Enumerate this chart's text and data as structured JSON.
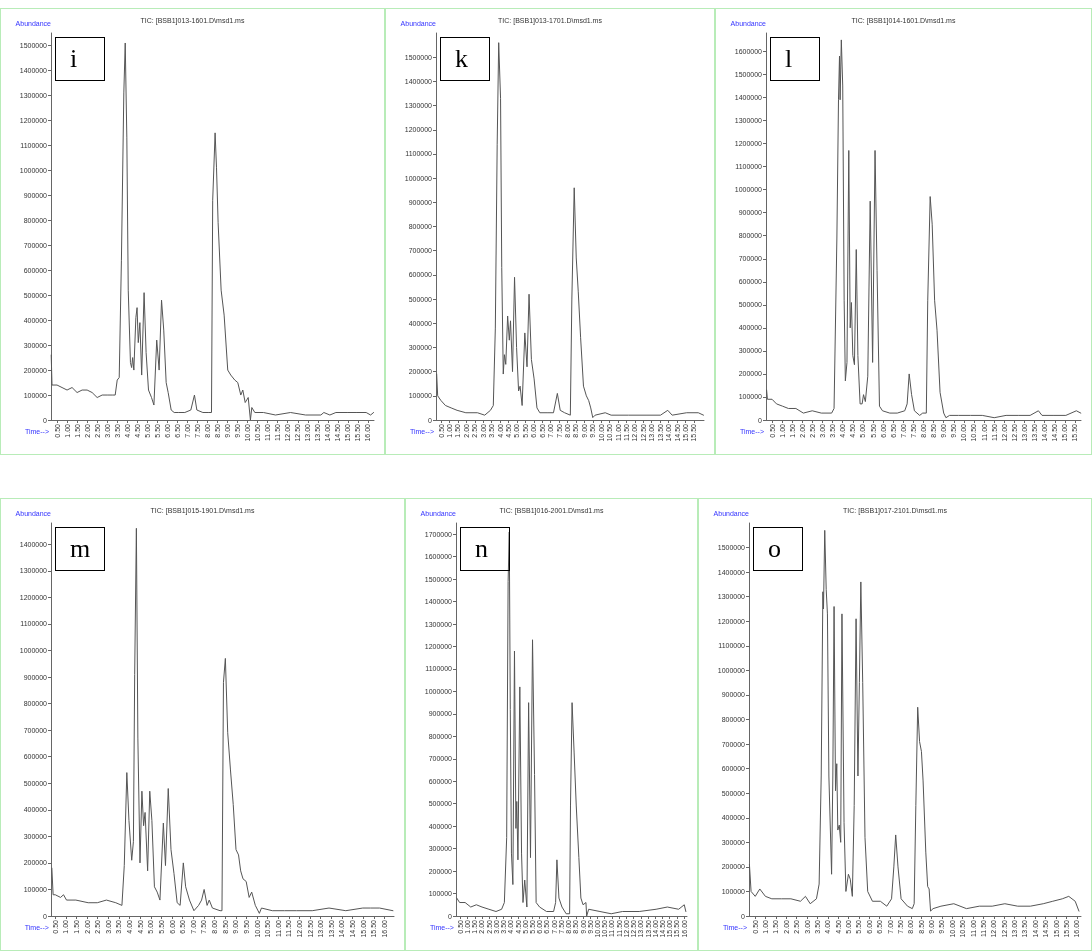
{
  "chart_data": [
    {
      "type": "line",
      "title": "TIC: [BSB1]013-1601.D\\msd1.ms",
      "xlabel": "Time-->",
      "ylabel": "Abundance",
      "annotations": [
        "i"
      ],
      "color": "#555555",
      "marker": "none",
      "grid": false,
      "xlim": [
        0.2,
        16.3
      ],
      "ylim": [
        0,
        1550000
      ],
      "xticks": [
        {
          "value": 0.5,
          "label": "0.50"
        },
        {
          "value": 1,
          "label": "1.00"
        },
        {
          "value": 1.5,
          "label": "1.50"
        },
        {
          "value": 2,
          "label": "2.00"
        },
        {
          "value": 2.5,
          "label": "2.50"
        },
        {
          "value": 3,
          "label": "3.00"
        },
        {
          "value": 3.5,
          "label": "3.50"
        },
        {
          "value": 4,
          "label": "4.00"
        },
        {
          "value": 4.5,
          "label": "4.50"
        },
        {
          "value": 5,
          "label": "5.00"
        },
        {
          "value": 5.5,
          "label": "5.50"
        },
        {
          "value": 6,
          "label": "6.00"
        },
        {
          "value": 6.5,
          "label": "6.50"
        },
        {
          "value": 7,
          "label": "7.00"
        },
        {
          "value": 7.5,
          "label": "7.50"
        },
        {
          "value": 8,
          "label": "8.00"
        },
        {
          "value": 8.5,
          "label": "8.50"
        },
        {
          "value": 9,
          "label": "9.00"
        },
        {
          "value": 9.5,
          "label": "9.50"
        },
        {
          "value": 10,
          "label": "10.00"
        },
        {
          "value": 10.5,
          "label": "10.50"
        },
        {
          "value": 11,
          "label": "11.00"
        },
        {
          "value": 11.5,
          "label": "11.50"
        },
        {
          "value": 12,
          "label": "12.00"
        },
        {
          "value": 12.5,
          "label": "12.50"
        },
        {
          "value": 13,
          "label": "13.00"
        },
        {
          "value": 13.5,
          "label": "13.50"
        },
        {
          "value": 14,
          "label": "14.00"
        },
        {
          "value": 14.5,
          "label": "14.50"
        },
        {
          "value": 15,
          "label": "15.00"
        },
        {
          "value": 15.5,
          "label": "15.50"
        },
        {
          "value": 16,
          "label": "16.00"
        }
      ],
      "yticks": [
        0,
        100000,
        200000,
        300000,
        400000,
        500000,
        600000,
        700000,
        800000,
        900000,
        1000000,
        1100000,
        1200000,
        1300000,
        1400000,
        1500000
      ],
      "x": [
        0.21,
        0.25,
        0.5,
        0.75,
        1.0,
        1.25,
        1.5,
        1.75,
        2.0,
        2.25,
        2.5,
        2.75,
        3.0,
        3.25,
        3.4,
        3.5,
        3.6,
        3.71,
        3.83,
        3.9,
        3.98,
        4.05,
        4.16,
        4.22,
        4.27,
        4.33,
        4.43,
        4.49,
        4.55,
        4.63,
        4.72,
        4.84,
        4.94,
        5.06,
        5.21,
        5.33,
        5.47,
        5.59,
        5.71,
        5.82,
        5.94,
        6.04,
        6.19,
        6.34,
        6.57,
        6.87,
        7.17,
        7.35,
        7.47,
        7.77,
        8.07,
        8.2,
        8.26,
        8.38,
        8.45,
        8.53,
        8.68,
        8.83,
        9.01,
        9.16,
        9.36,
        9.51,
        9.66,
        9.76,
        9.88,
        10.03,
        10.14,
        10.21,
        10.36,
        10.79,
        11.39,
        12.14,
        12.89,
        13.65,
        13.8,
        14.1,
        14.4,
        15.0,
        15.45,
        15.91,
        16.13,
        16.28
      ],
      "values": [
        260000,
        140000,
        140000,
        130000,
        120000,
        130000,
        110000,
        120000,
        120000,
        110000,
        90000,
        100000,
        100000,
        100000,
        100000,
        160000,
        170000,
        640000,
        1310000,
        1510000,
        1130000,
        520000,
        230000,
        210000,
        250000,
        200000,
        410000,
        450000,
        310000,
        390000,
        180000,
        510000,
        270000,
        120000,
        90000,
        60000,
        320000,
        200000,
        480000,
        360000,
        150000,
        110000,
        40000,
        30000,
        30000,
        30000,
        40000,
        100000,
        40000,
        30000,
        30000,
        30000,
        880000,
        1150000,
        1010000,
        790000,
        520000,
        420000,
        200000,
        180000,
        160000,
        150000,
        100000,
        120000,
        70000,
        90000,
        0,
        50000,
        30000,
        30000,
        20000,
        30000,
        20000,
        20000,
        30000,
        20000,
        30000,
        30000,
        30000,
        30000,
        20000,
        30000
      ]
    },
    {
      "type": "line",
      "title": "TIC: [BSB1]013-1701.D\\msd1.ms",
      "xlabel": "Time-->",
      "ylabel": "Abundance",
      "annotations": [
        "k"
      ],
      "color": "#555555",
      "marker": "none",
      "grid": false,
      "xlim": [
        0.2,
        16.1
      ],
      "ylim": [
        0,
        1600000
      ],
      "xticks": [
        {
          "value": 0.5,
          "label": "0.50"
        },
        {
          "value": 1,
          "label": "1.00"
        },
        {
          "value": 1.5,
          "label": "1.50"
        },
        {
          "value": 2,
          "label": "2.00"
        },
        {
          "value": 2.5,
          "label": "2.50"
        },
        {
          "value": 3,
          "label": "3.00"
        },
        {
          "value": 3.5,
          "label": "3.50"
        },
        {
          "value": 4,
          "label": "4.00"
        },
        {
          "value": 4.5,
          "label": "4.50"
        },
        {
          "value": 5,
          "label": "5.00"
        },
        {
          "value": 5.5,
          "label": "5.50"
        },
        {
          "value": 6,
          "label": "6.00"
        },
        {
          "value": 6.5,
          "label": "6.50"
        },
        {
          "value": 7,
          "label": "7.00"
        },
        {
          "value": 7.5,
          "label": "7.50"
        },
        {
          "value": 8,
          "label": "8.00"
        },
        {
          "value": 8.5,
          "label": "8.50"
        },
        {
          "value": 9,
          "label": "9.00"
        },
        {
          "value": 9.5,
          "label": "9.50"
        },
        {
          "value": 10,
          "label": "10.00"
        },
        {
          "value": 10.5,
          "label": "10.50"
        },
        {
          "value": 11,
          "label": "11.00"
        },
        {
          "value": 11.5,
          "label": "11.50"
        },
        {
          "value": 12,
          "label": "12.00"
        },
        {
          "value": 12.5,
          "label": "12.50"
        },
        {
          "value": 13,
          "label": "13.00"
        },
        {
          "value": 13.5,
          "label": "13.50"
        },
        {
          "value": 14,
          "label": "14.00"
        },
        {
          "value": 14.5,
          "label": "14.50"
        },
        {
          "value": 15,
          "label": "15.00"
        },
        {
          "value": 15.5,
          "label": "15.50"
        }
      ],
      "yticks": [
        0,
        100000,
        200000,
        300000,
        400000,
        500000,
        600000,
        700000,
        800000,
        900000,
        1000000,
        1100000,
        1200000,
        1300000,
        1400000,
        1500000
      ],
      "x": [
        0.24,
        0.3,
        0.5,
        0.76,
        1.1,
        1.45,
        1.97,
        2.66,
        3.09,
        3.43,
        3.6,
        3.72,
        3.83,
        3.92,
        4.03,
        4.1,
        4.19,
        4.26,
        4.34,
        4.45,
        4.55,
        4.62,
        4.74,
        4.86,
        4.98,
        5.1,
        5.19,
        5.31,
        5.47,
        5.6,
        5.72,
        5.86,
        6.02,
        6.19,
        6.36,
        6.79,
        7.17,
        7.4,
        7.57,
        7.83,
        8.17,
        8.26,
        8.4,
        8.52,
        8.64,
        8.78,
        8.95,
        9.12,
        9.26,
        9.38,
        9.5,
        9.64,
        10.24,
        10.59,
        11.62,
        12.66,
        13.52,
        13.95,
        14.21,
        15.07,
        15.76,
        16.07
      ],
      "values": [
        190000,
        100000,
        80000,
        60000,
        50000,
        40000,
        30000,
        30000,
        20000,
        40000,
        60000,
        380000,
        1140000,
        1560000,
        1330000,
        630000,
        190000,
        270000,
        230000,
        430000,
        330000,
        410000,
        200000,
        590000,
        300000,
        120000,
        140000,
        60000,
        360000,
        220000,
        520000,
        250000,
        170000,
        50000,
        30000,
        30000,
        30000,
        110000,
        40000,
        30000,
        20000,
        500000,
        960000,
        670000,
        530000,
        340000,
        140000,
        100000,
        80000,
        50000,
        10000,
        20000,
        30000,
        20000,
        20000,
        20000,
        20000,
        40000,
        20000,
        30000,
        30000,
        20000
      ]
    },
    {
      "type": "line",
      "title": "TIC: [BSB1]014-1601.D\\msd1.ms",
      "xlabel": "Time-->",
      "ylabel": "Abundance",
      "annotations": [
        "l"
      ],
      "color": "#555555",
      "marker": "none",
      "grid": false,
      "xlim": [
        0.2,
        15.8
      ],
      "ylim": [
        0,
        1680000
      ],
      "xticks": [
        {
          "value": 0.5,
          "label": "0.50"
        },
        {
          "value": 1,
          "label": "1.00"
        },
        {
          "value": 1.5,
          "label": "1.50"
        },
        {
          "value": 2,
          "label": "2.00"
        },
        {
          "value": 2.5,
          "label": "2.50"
        },
        {
          "value": 3,
          "label": "3.00"
        },
        {
          "value": 3.5,
          "label": "3.50"
        },
        {
          "value": 4,
          "label": "4.00"
        },
        {
          "value": 4.5,
          "label": "4.50"
        },
        {
          "value": 5,
          "label": "5.00"
        },
        {
          "value": 5.5,
          "label": "5.50"
        },
        {
          "value": 6,
          "label": "6.00"
        },
        {
          "value": 6.5,
          "label": "6.50"
        },
        {
          "value": 7,
          "label": "7.00"
        },
        {
          "value": 7.5,
          "label": "7.50"
        },
        {
          "value": 8,
          "label": "8.00"
        },
        {
          "value": 8.5,
          "label": "8.50"
        },
        {
          "value": 9,
          "label": "9.00"
        },
        {
          "value": 9.5,
          "label": "9.50"
        },
        {
          "value": 10,
          "label": "10.00"
        },
        {
          "value": 10.5,
          "label": "10.50"
        },
        {
          "value": 11,
          "label": "11.00"
        },
        {
          "value": 11.5,
          "label": "11.50"
        },
        {
          "value": 12,
          "label": "12.00"
        },
        {
          "value": 12.5,
          "label": "12.50"
        },
        {
          "value": 13,
          "label": "13.00"
        },
        {
          "value": 13.5,
          "label": "13.50"
        },
        {
          "value": 14,
          "label": "14.00"
        },
        {
          "value": 14.5,
          "label": "14.50"
        },
        {
          "value": 15,
          "label": "15.00"
        },
        {
          "value": 15.5,
          "label": "15.50"
        }
      ],
      "yticks": [
        0,
        100000,
        200000,
        300000,
        400000,
        500000,
        600000,
        700000,
        800000,
        900000,
        1000000,
        1100000,
        1200000,
        1300000,
        1400000,
        1500000,
        1600000
      ],
      "x": [
        0.23,
        0.27,
        0.5,
        0.72,
        1.02,
        1.31,
        1.68,
        2.05,
        2.49,
        2.94,
        3.45,
        3.57,
        3.71,
        3.79,
        3.84,
        3.87,
        3.93,
        4.0,
        4.07,
        4.13,
        4.21,
        4.3,
        4.37,
        4.43,
        4.5,
        4.58,
        4.67,
        4.75,
        4.86,
        4.96,
        5.03,
        5.12,
        5.24,
        5.36,
        5.48,
        5.6,
        5.7,
        5.82,
        5.97,
        6.33,
        6.7,
        7.07,
        7.19,
        7.29,
        7.41,
        7.55,
        7.81,
        7.96,
        8.14,
        8.21,
        8.33,
        8.43,
        8.55,
        8.67,
        8.82,
        9.0,
        9.11,
        9.29,
        9.73,
        10.32,
        10.91,
        11.5,
        12.09,
        12.69,
        13.28,
        13.69,
        13.87,
        14.46,
        15.05,
        15.57,
        15.79
      ],
      "values": [
        130000,
        90000,
        90000,
        70000,
        60000,
        50000,
        50000,
        30000,
        40000,
        30000,
        30000,
        50000,
        790000,
        1390000,
        1580000,
        1390000,
        1650000,
        1450000,
        520000,
        170000,
        250000,
        1170000,
        400000,
        510000,
        280000,
        240000,
        740000,
        280000,
        70000,
        70000,
        110000,
        80000,
        190000,
        950000,
        250000,
        1170000,
        650000,
        60000,
        40000,
        30000,
        30000,
        40000,
        70000,
        200000,
        110000,
        40000,
        20000,
        30000,
        30000,
        520000,
        970000,
        850000,
        520000,
        390000,
        120000,
        30000,
        10000,
        20000,
        20000,
        20000,
        20000,
        10000,
        20000,
        20000,
        20000,
        40000,
        20000,
        20000,
        20000,
        40000,
        30000
      ]
    },
    {
      "type": "line",
      "title": "TIC: [BSB1]015-1901.D\\msd1.ms",
      "xlabel": "Time-->",
      "ylabel": "Abundance",
      "annotations": [
        "m"
      ],
      "color": "#555555",
      "marker": "none",
      "grid": false,
      "xlim": [
        0.3,
        16.45
      ],
      "ylim": [
        0,
        1480000
      ],
      "xticks": [
        {
          "value": 0.5,
          "label": "0.50"
        },
        {
          "value": 1,
          "label": "1.00"
        },
        {
          "value": 1.5,
          "label": "1.50"
        },
        {
          "value": 2,
          "label": "2.00"
        },
        {
          "value": 2.5,
          "label": "2.50"
        },
        {
          "value": 3,
          "label": "3.00"
        },
        {
          "value": 3.5,
          "label": "3.50"
        },
        {
          "value": 4,
          "label": "4.00"
        },
        {
          "value": 4.5,
          "label": "4.50"
        },
        {
          "value": 5,
          "label": "5.00"
        },
        {
          "value": 5.5,
          "label": "5.50"
        },
        {
          "value": 6,
          "label": "6.00"
        },
        {
          "value": 6.5,
          "label": "6.50"
        },
        {
          "value": 7,
          "label": "7.00"
        },
        {
          "value": 7.5,
          "label": "7.50"
        },
        {
          "value": 8,
          "label": "8.00"
        },
        {
          "value": 8.5,
          "label": "8.50"
        },
        {
          "value": 9,
          "label": "9.00"
        },
        {
          "value": 9.5,
          "label": "9.50"
        },
        {
          "value": 10,
          "label": "10.00"
        },
        {
          "value": 10.5,
          "label": "10.50"
        },
        {
          "value": 11,
          "label": "11.00"
        },
        {
          "value": 11.5,
          "label": "11.50"
        },
        {
          "value": 12,
          "label": "12.00"
        },
        {
          "value": 12.5,
          "label": "12.50"
        },
        {
          "value": 13,
          "label": "13.00"
        },
        {
          "value": 13.5,
          "label": "13.50"
        },
        {
          "value": 14,
          "label": "14.00"
        },
        {
          "value": 14.5,
          "label": "14.50"
        },
        {
          "value": 15,
          "label": "15.00"
        },
        {
          "value": 15.5,
          "label": "15.50"
        },
        {
          "value": 16,
          "label": "16.00"
        }
      ],
      "yticks": [
        0,
        100000,
        200000,
        300000,
        400000,
        500000,
        600000,
        700000,
        800000,
        900000,
        1000000,
        1100000,
        1200000,
        1300000,
        1400000
      ],
      "x": [
        0.34,
        0.4,
        0.5,
        0.75,
        0.89,
        1.03,
        1.47,
        2.05,
        2.48,
        2.91,
        3.35,
        3.64,
        3.75,
        3.87,
        3.97,
        4.1,
        4.18,
        4.24,
        4.32,
        4.39,
        4.49,
        4.58,
        4.66,
        4.73,
        4.85,
        4.95,
        5.05,
        5.17,
        5.3,
        5.43,
        5.59,
        5.69,
        5.82,
        5.95,
        6.09,
        6.24,
        6.38,
        6.53,
        6.64,
        6.82,
        7.03,
        7.25,
        7.39,
        7.51,
        7.65,
        7.75,
        7.9,
        8.26,
        8.35,
        8.42,
        8.51,
        8.62,
        8.75,
        8.88,
        9.01,
        9.13,
        9.23,
        9.34,
        9.49,
        9.63,
        9.75,
        9.92,
        10.11,
        10.21,
        10.72,
        11.29,
        11.87,
        12.6,
        13.39,
        14.18,
        14.98,
        15.34,
        15.77,
        16.4
      ],
      "values": [
        180000,
        80000,
        80000,
        70000,
        80000,
        60000,
        60000,
        50000,
        50000,
        60000,
        50000,
        40000,
        190000,
        540000,
        360000,
        210000,
        280000,
        910000,
        1460000,
        670000,
        200000,
        470000,
        340000,
        390000,
        170000,
        470000,
        360000,
        110000,
        90000,
        60000,
        350000,
        190000,
        480000,
        250000,
        160000,
        50000,
        40000,
        200000,
        110000,
        60000,
        20000,
        40000,
        60000,
        100000,
        40000,
        60000,
        30000,
        20000,
        20000,
        880000,
        970000,
        690000,
        550000,
        420000,
        250000,
        230000,
        170000,
        140000,
        130000,
        70000,
        90000,
        40000,
        10000,
        30000,
        20000,
        20000,
        20000,
        20000,
        30000,
        20000,
        30000,
        30000,
        30000,
        20000
      ]
    },
    {
      "type": "line",
      "title": "TIC: [BSB1]016-2001.D\\msd1.ms",
      "xlabel": "Time-->",
      "ylabel": "Abundance",
      "annotations": [
        "n"
      ],
      "color": "#555555",
      "marker": "none",
      "grid": false,
      "xlim": [
        0.2,
        16.2
      ],
      "ylim": [
        0,
        1750000
      ],
      "xticks": [
        {
          "value": 0.5,
          "label": "0.50"
        },
        {
          "value": 1,
          "label": "1.00"
        },
        {
          "value": 1.5,
          "label": "1.50"
        },
        {
          "value": 2,
          "label": "2.00"
        },
        {
          "value": 2.5,
          "label": "2.50"
        },
        {
          "value": 3,
          "label": "3.00"
        },
        {
          "value": 3.5,
          "label": "3.50"
        },
        {
          "value": 4,
          "label": "4.00"
        },
        {
          "value": 4.5,
          "label": "4.50"
        },
        {
          "value": 5,
          "label": "5.00"
        },
        {
          "value": 5.5,
          "label": "5.50"
        },
        {
          "value": 6,
          "label": "6.00"
        },
        {
          "value": 6.5,
          "label": "6.50"
        },
        {
          "value": 7,
          "label": "7.00"
        },
        {
          "value": 7.5,
          "label": "7.50"
        },
        {
          "value": 8,
          "label": "8.00"
        },
        {
          "value": 8.5,
          "label": "8.50"
        },
        {
          "value": 9,
          "label": "9.00"
        },
        {
          "value": 9.5,
          "label": "9.50"
        },
        {
          "value": 10,
          "label": "10.00"
        },
        {
          "value": 10.5,
          "label": "10.50"
        },
        {
          "value": 11,
          "label": "11.00"
        },
        {
          "value": 11.5,
          "label": "11.50"
        },
        {
          "value": 12,
          "label": "12.00"
        },
        {
          "value": 12.5,
          "label": "12.50"
        },
        {
          "value": 13,
          "label": "13.00"
        },
        {
          "value": 13.5,
          "label": "13.50"
        },
        {
          "value": 14,
          "label": "14.00"
        },
        {
          "value": 14.5,
          "label": "14.50"
        },
        {
          "value": 15,
          "label": "15.00"
        },
        {
          "value": 15.5,
          "label": "15.50"
        },
        {
          "value": 16,
          "label": "16.00"
        }
      ],
      "yticks": [
        0,
        100000,
        200000,
        300000,
        400000,
        500000,
        600000,
        700000,
        800000,
        900000,
        1000000,
        1100000,
        1200000,
        1300000,
        1400000,
        1500000,
        1600000,
        1700000
      ],
      "x": [
        0.25,
        0.45,
        0.83,
        1.22,
        1.61,
        2.0,
        2.48,
        2.97,
        3.36,
        3.55,
        3.71,
        3.81,
        3.89,
        3.96,
        4.04,
        4.14,
        4.25,
        4.35,
        4.41,
        4.49,
        4.62,
        4.74,
        4.84,
        4.96,
        5.11,
        5.23,
        5.36,
        5.5,
        5.64,
        5.75,
        5.99,
        6.47,
        6.96,
        7.1,
        7.19,
        7.33,
        7.54,
        7.83,
        8.07,
        8.13,
        8.24,
        8.38,
        8.53,
        8.71,
        8.85,
        9.0,
        9.2,
        9.25,
        9.39,
        10.17,
        10.95,
        11.73,
        12.89,
        14.06,
        14.84,
        15.62,
        16.01,
        16.12
      ],
      "values": [
        80000,
        60000,
        60000,
        40000,
        50000,
        40000,
        30000,
        20000,
        30000,
        60000,
        350000,
        1490000,
        1710000,
        920000,
        280000,
        140000,
        1180000,
        390000,
        510000,
        250000,
        1020000,
        280000,
        60000,
        160000,
        40000,
        950000,
        260000,
        1230000,
        630000,
        60000,
        40000,
        20000,
        20000,
        60000,
        250000,
        80000,
        40000,
        10000,
        10000,
        490000,
        950000,
        730000,
        490000,
        260000,
        80000,
        50000,
        60000,
        0,
        30000,
        20000,
        10000,
        20000,
        20000,
        30000,
        40000,
        30000,
        50000,
        20000
      ]
    },
    {
      "type": "line",
      "title": "TIC: [BSB1]017-2101.D\\msd1.ms",
      "xlabel": "Time-->",
      "ylabel": "Abundance",
      "annotations": [
        "o"
      ],
      "color": "#555555",
      "marker": "none",
      "grid": false,
      "xlim": [
        0.2,
        16.2
      ],
      "ylim": [
        0,
        1600000
      ],
      "xticks": [
        {
          "value": 0.5,
          "label": "0.50"
        },
        {
          "value": 1,
          "label": "1.00"
        },
        {
          "value": 1.5,
          "label": "1.50"
        },
        {
          "value": 2,
          "label": "2.00"
        },
        {
          "value": 2.5,
          "label": "2.50"
        },
        {
          "value": 3,
          "label": "3.00"
        },
        {
          "value": 3.5,
          "label": "3.50"
        },
        {
          "value": 4,
          "label": "4.00"
        },
        {
          "value": 4.5,
          "label": "4.50"
        },
        {
          "value": 5,
          "label": "5.00"
        },
        {
          "value": 5.5,
          "label": "5.50"
        },
        {
          "value": 6,
          "label": "6.00"
        },
        {
          "value": 6.5,
          "label": "6.50"
        },
        {
          "value": 7,
          "label": "7.00"
        },
        {
          "value": 7.5,
          "label": "7.50"
        },
        {
          "value": 8,
          "label": "8.00"
        },
        {
          "value": 8.5,
          "label": "8.50"
        },
        {
          "value": 9,
          "label": "9.00"
        },
        {
          "value": 9.5,
          "label": "9.50"
        },
        {
          "value": 10,
          "label": "10.00"
        },
        {
          "value": 10.5,
          "label": "10.50"
        },
        {
          "value": 11,
          "label": "11.00"
        },
        {
          "value": 11.5,
          "label": "11.50"
        },
        {
          "value": 12,
          "label": "12.00"
        },
        {
          "value": 12.5,
          "label": "12.50"
        },
        {
          "value": 13,
          "label": "13.00"
        },
        {
          "value": 13.5,
          "label": "13.50"
        },
        {
          "value": 14,
          "label": "14.00"
        },
        {
          "value": 14.5,
          "label": "14.50"
        },
        {
          "value": 15,
          "label": "15.00"
        },
        {
          "value": 15.5,
          "label": "15.50"
        },
        {
          "value": 16,
          "label": "16.00"
        }
      ],
      "yticks": [
        0,
        100000,
        200000,
        300000,
        400000,
        500000,
        600000,
        700000,
        800000,
        900000,
        1000000,
        1100000,
        1200000,
        1300000,
        1400000,
        1500000
      ],
      "x": [
        0.22,
        0.3,
        0.5,
        0.72,
        0.99,
        1.3,
        1.76,
        2.22,
        2.68,
        2.92,
        3.15,
        3.45,
        3.58,
        3.68,
        3.76,
        3.79,
        3.85,
        3.92,
        3.98,
        4.05,
        4.18,
        4.24,
        4.3,
        4.37,
        4.43,
        4.48,
        4.55,
        4.62,
        4.68,
        4.78,
        4.87,
        4.99,
        5.08,
        5.18,
        5.27,
        5.36,
        5.45,
        5.52,
        5.59,
        5.68,
        5.79,
        5.92,
        6.15,
        6.53,
        6.84,
        7.07,
        7.18,
        7.27,
        7.38,
        7.53,
        7.84,
        8.07,
        8.16,
        8.24,
        8.33,
        8.42,
        8.51,
        8.59,
        8.72,
        8.81,
        8.88,
        8.95,
        9.07,
        9.45,
        10.07,
        10.68,
        11.3,
        11.92,
        12.53,
        13.15,
        13.76,
        14.38,
        14.84,
        15.3,
        15.61,
        15.92,
        16.1
      ],
      "values": [
        210000,
        100000,
        80000,
        110000,
        80000,
        70000,
        70000,
        70000,
        60000,
        80000,
        50000,
        70000,
        130000,
        570000,
        1320000,
        1250000,
        1570000,
        1330000,
        1230000,
        570000,
        170000,
        570000,
        1260000,
        510000,
        620000,
        350000,
        370000,
        300000,
        1230000,
        380000,
        100000,
        170000,
        150000,
        80000,
        450000,
        1210000,
        570000,
        950000,
        1360000,
        950000,
        320000,
        100000,
        60000,
        60000,
        40000,
        70000,
        200000,
        330000,
        200000,
        70000,
        40000,
        30000,
        50000,
        450000,
        850000,
        710000,
        670000,
        550000,
        260000,
        120000,
        110000,
        20000,
        30000,
        40000,
        50000,
        30000,
        40000,
        40000,
        50000,
        40000,
        40000,
        50000,
        60000,
        70000,
        80000,
        60000,
        20000
      ]
    }
  ]
}
